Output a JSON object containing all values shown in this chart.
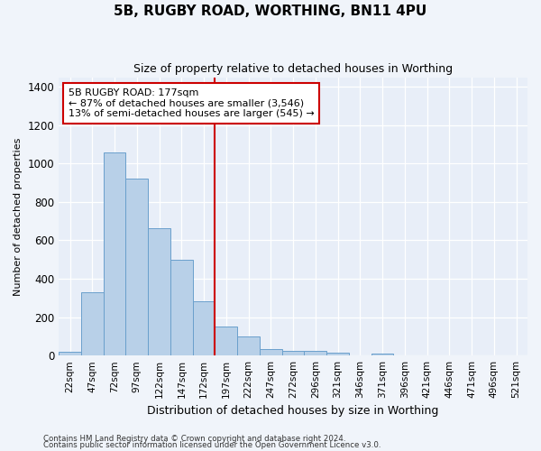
{
  "title": "5B, RUGBY ROAD, WORTHING, BN11 4PU",
  "subtitle": "Size of property relative to detached houses in Worthing",
  "xlabel": "Distribution of detached houses by size in Worthing",
  "ylabel": "Number of detached properties",
  "bar_color": "#b8d0e8",
  "bar_edge_color": "#6aa0cc",
  "background_color": "#e8eef8",
  "grid_color": "#ffffff",
  "fig_color": "#f0f4fa",
  "categories": [
    "22sqm",
    "47sqm",
    "72sqm",
    "97sqm",
    "122sqm",
    "147sqm",
    "172sqm",
    "197sqm",
    "222sqm",
    "247sqm",
    "272sqm",
    "296sqm",
    "321sqm",
    "346sqm",
    "371sqm",
    "396sqm",
    "421sqm",
    "446sqm",
    "471sqm",
    "496sqm",
    "521sqm"
  ],
  "values": [
    20,
    330,
    1060,
    920,
    665,
    500,
    285,
    150,
    100,
    35,
    25,
    22,
    15,
    0,
    12,
    0,
    0,
    0,
    0,
    0,
    0
  ],
  "ylim": [
    0,
    1450
  ],
  "yticks": [
    0,
    200,
    400,
    600,
    800,
    1000,
    1200,
    1400
  ],
  "property_line_x": 6.5,
  "annotation_title": "5B RUGBY ROAD: 177sqm",
  "annotation_line1": "← 87% of detached houses are smaller (3,546)",
  "annotation_line2": "13% of semi-detached houses are larger (545) →",
  "annotation_box_color": "#ffffff",
  "annotation_border_color": "#cc0000",
  "vline_color": "#cc0000",
  "footer1": "Contains HM Land Registry data © Crown copyright and database right 2024.",
  "footer2": "Contains public sector information licensed under the Open Government Licence v3.0."
}
